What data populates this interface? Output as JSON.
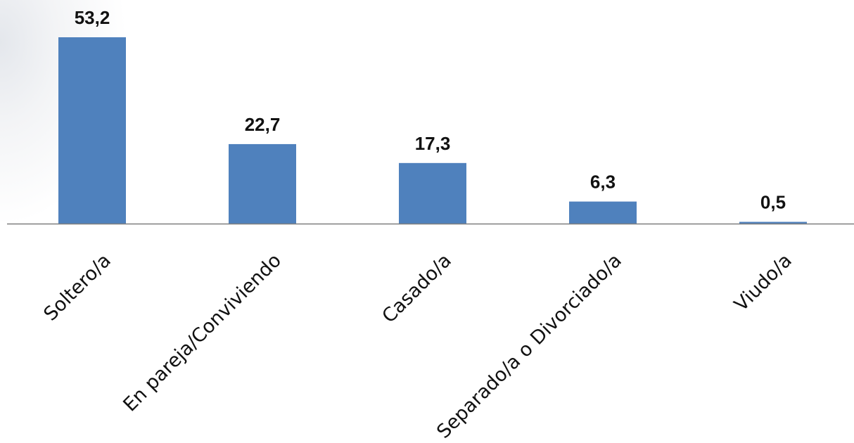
{
  "chart_data": {
    "type": "bar",
    "categories": [
      "Soltero/a",
      "En pareja/Conviviendo",
      "Casado/a",
      "Separado/a o Divorciado/a",
      "Viudo/a"
    ],
    "values": [
      53.2,
      22.7,
      17.3,
      6.3,
      0.5
    ],
    "value_labels": [
      "53,2",
      "22,7",
      "17,3",
      "6,3",
      "0,5"
    ],
    "ylim": [
      0,
      53.2
    ],
    "grid": false,
    "legend": "none",
    "colors": {
      "bar": "#4f81bd",
      "axis": "#7f7f7f",
      "text": "#111111"
    }
  }
}
